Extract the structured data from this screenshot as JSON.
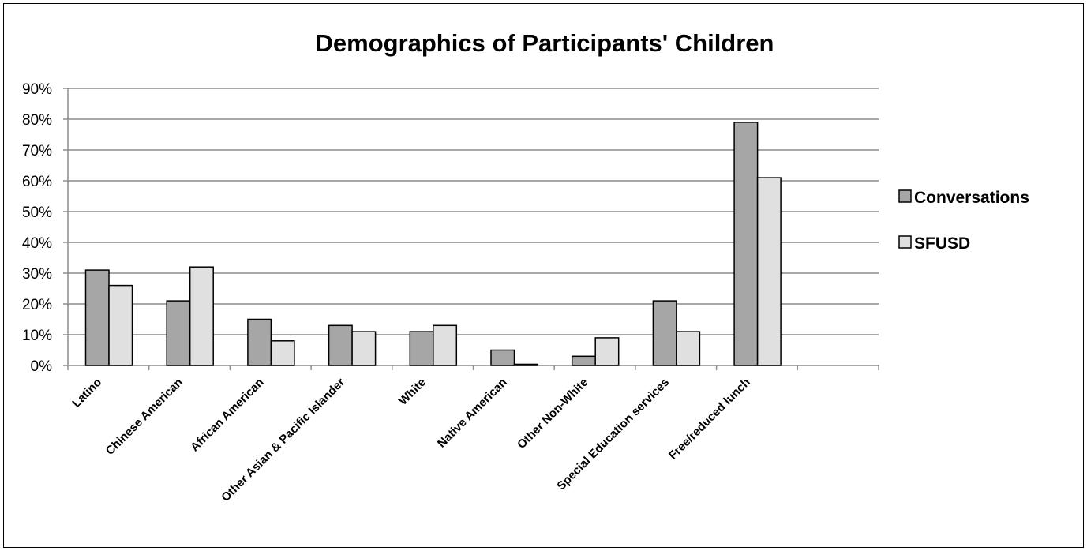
{
  "chart_data": {
    "type": "bar",
    "title": "Demographics of Participants' Children",
    "categories": [
      "Latino",
      "Chinese American",
      "African American",
      "Other Asian & Pacific Islander",
      "White",
      "Native American",
      "Other Non-White",
      "Special Education services",
      "Free/reduced lunch"
    ],
    "series": [
      {
        "name": "Conversations",
        "color": "#a6a6a6",
        "values": [
          31,
          21,
          15,
          13,
          11,
          5,
          3,
          21,
          79
        ]
      },
      {
        "name": "SFUSD",
        "color": "#e0e0e0",
        "values": [
          26,
          32,
          8,
          11,
          13,
          0.4,
          9,
          11,
          61
        ]
      }
    ],
    "ylim": [
      0,
      90
    ],
    "yticks": [
      "0%",
      "10%",
      "20%",
      "30%",
      "40%",
      "50%",
      "60%",
      "70%",
      "80%",
      "90%"
    ],
    "xlabel": "",
    "ylabel": "",
    "grid": true,
    "legend_position": "right"
  }
}
